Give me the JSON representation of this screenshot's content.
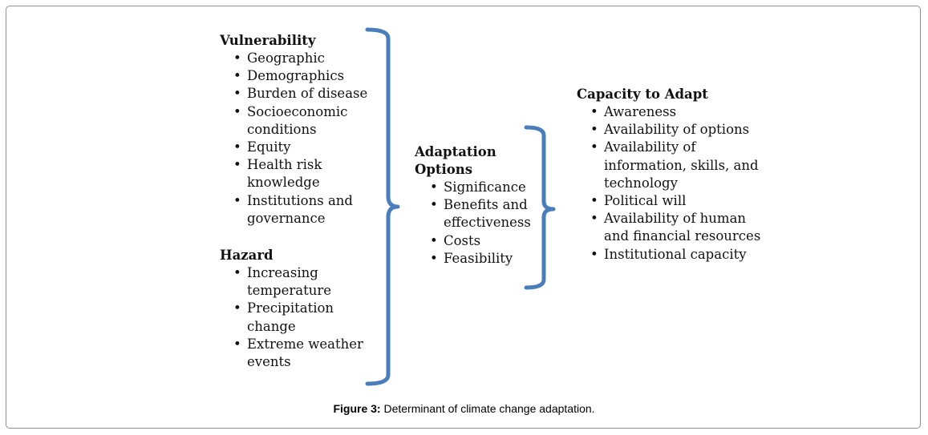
{
  "vulnerability": {
    "title": "Vulnerability",
    "items": [
      "Geographic",
      "Demographics",
      "Burden of disease",
      "Socioeconomic conditions",
      "Equity",
      "Health risk knowledge",
      "Institutions and governance"
    ]
  },
  "hazard": {
    "title": "Hazard",
    "items": [
      "Increasing temperature",
      "Precipitation change",
      "Extreme weather events"
    ]
  },
  "adaptation_options": {
    "title": "Adaptation Options",
    "items": [
      "Significance",
      "Benefits and effectiveness",
      "Costs",
      "Feasibility"
    ]
  },
  "capacity_to_adapt": {
    "title": "Capacity to Adapt",
    "items": [
      "Awareness",
      "Availability of options",
      "Availability of information, skills, and technology",
      "Political will",
      "Availability of human and financial resources",
      "Institutional capacity"
    ]
  },
  "caption": {
    "label": "Figure 3:",
    "text": " Determinant of climate change adaptation."
  },
  "colors": {
    "bracket": "#4a7ebb",
    "border": "#8f8f8f"
  },
  "bullet_glyph": "•"
}
